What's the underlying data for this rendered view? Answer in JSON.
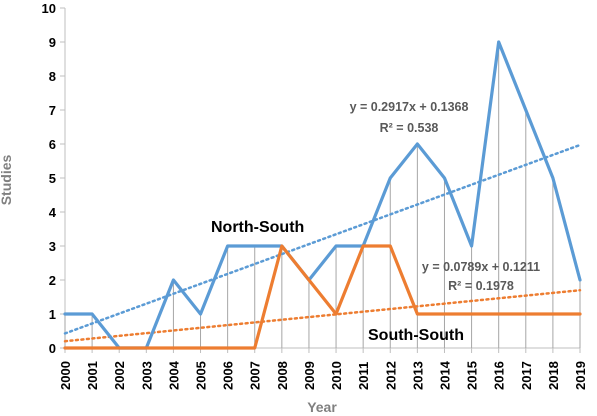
{
  "chart_data": {
    "type": "line",
    "title": "",
    "xlabel": "Year",
    "ylabel": "Studies",
    "ylim": [
      0,
      10
    ],
    "yticks": [
      0,
      1,
      2,
      3,
      4,
      5,
      6,
      7,
      8,
      9,
      10
    ],
    "categories": [
      "2000",
      "2001",
      "2002",
      "2003",
      "2004",
      "2005",
      "2006",
      "2007",
      "2008",
      "2009",
      "2010",
      "2011",
      "2012",
      "2013",
      "2014",
      "2015",
      "2016",
      "2017",
      "2018",
      "2019"
    ],
    "grid": false,
    "drop_lines": true,
    "series": [
      {
        "name": "North-South",
        "color": "#5B9BD5",
        "values": [
          1,
          1,
          0,
          0,
          2,
          1,
          3,
          3,
          3,
          2,
          3,
          3,
          5,
          6,
          5,
          3,
          9,
          7,
          5,
          2
        ],
        "trendline": {
          "type": "linear",
          "equation": "y = 0.2917x + 0.1368",
          "r2": "R² = 0.538"
        }
      },
      {
        "name": "South-South",
        "color": "#ED7D31",
        "values": [
          0,
          0,
          0,
          0,
          0,
          0,
          0,
          0,
          3,
          2,
          1,
          3,
          3,
          1,
          1,
          1,
          1,
          1,
          1,
          1
        ],
        "trendline": {
          "type": "linear",
          "equation": "y = 0.0789x + 0.1211",
          "r2": "R² = 0.1978"
        }
      }
    ]
  }
}
